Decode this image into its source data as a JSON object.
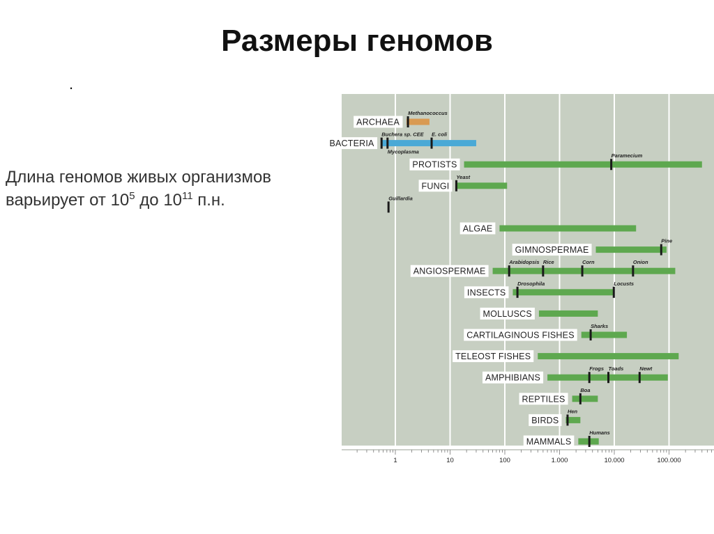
{
  "slide": {
    "title": "Размеры геномов",
    "bullet": ".",
    "desc_part1": "Длина геномов живых организмов варьирует от 10",
    "desc_sup1": "5",
    "desc_part2": " до 10",
    "desc_sup2": "11",
    "desc_part3": " п.н."
  },
  "chart_data": {
    "type": "bar",
    "orientation": "horizontal",
    "x_scale": "log",
    "xlim": [
      0.01,
      500000
    ],
    "tick_labels": [
      "1",
      "10",
      "100",
      "1.000",
      "10.000",
      "100.000"
    ],
    "tick_values": [
      1,
      10,
      100,
      1000,
      10000,
      100000
    ],
    "grid": true,
    "colors": {
      "archaea": "#d99a52",
      "bacteria": "#4aa9d6",
      "default": "#5ea84f",
      "background": "#c7cfc2",
      "marker": "#1a1a1a"
    },
    "rows": [
      {
        "label": "ARCHAEA",
        "range": [
          1.6,
          4.2
        ],
        "color": "archaea",
        "markers": [
          {
            "value": 1.7,
            "label": "Methanococcus",
            "pos": "above"
          }
        ]
      },
      {
        "label": "BACTERIA",
        "range": [
          0.55,
          30
        ],
        "color": "bacteria",
        "markers": [
          {
            "value": 0.56,
            "label": "Buchera sp. CEE",
            "pos": "above"
          },
          {
            "value": 4.6,
            "label": "E. coli",
            "pos": "above"
          },
          {
            "value": 0.72,
            "label": "Mycoplasma",
            "pos": "below"
          }
        ]
      },
      {
        "label": "PROTISTS",
        "range": [
          18,
          400000
        ],
        "color": "default",
        "markers": [
          {
            "value": 8800,
            "label": "Paramecium",
            "pos": "above"
          }
        ]
      },
      {
        "label": "FUNGI",
        "range": [
          13,
          110
        ],
        "color": "default",
        "markers": [
          {
            "value": 13,
            "label": "Yeast",
            "pos": "above"
          }
        ]
      },
      {
        "label": "",
        "range": null,
        "color": "default",
        "markers": [
          {
            "value": 0.75,
            "label": "Guillardia",
            "pos": "above"
          }
        ]
      },
      {
        "label": "ALGAE",
        "range": [
          80,
          25000
        ],
        "color": "default",
        "markers": []
      },
      {
        "label": "GIMNOSPERMAE",
        "range": [
          4600,
          90000
        ],
        "color": "default",
        "markers": [
          {
            "value": 72000,
            "label": "Pine",
            "pos": "above"
          }
        ]
      },
      {
        "label": "ANGIOSPERMAE",
        "range": [
          60,
          130000
        ],
        "color": "default",
        "markers": [
          {
            "value": 120,
            "label": "Arabidopsis",
            "pos": "above"
          },
          {
            "value": 500,
            "label": "Rice",
            "pos": "above"
          },
          {
            "value": 2600,
            "label": "Corn",
            "pos": "above"
          },
          {
            "value": 22000,
            "label": "Onion",
            "pos": "above"
          }
        ]
      },
      {
        "label": "INSECTS",
        "range": [
          140,
          10000
        ],
        "color": "default",
        "markers": [
          {
            "value": 170,
            "label": "Drosophila",
            "pos": "above"
          },
          {
            "value": 9800,
            "label": "Locusts",
            "pos": "above"
          }
        ]
      },
      {
        "label": "MOLLUSCS",
        "range": [
          420,
          5000
        ],
        "color": "default",
        "markers": []
      },
      {
        "label": "CARTILAGINOUS FISHES",
        "range": [
          2500,
          17000
        ],
        "color": "default",
        "markers": [
          {
            "value": 3700,
            "label": "Sharks",
            "pos": "above"
          }
        ]
      },
      {
        "label": "TELEOST FISHES",
        "range": [
          400,
          150000
        ],
        "color": "default",
        "markers": []
      },
      {
        "label": "AMPHIBIANS",
        "range": [
          600,
          95000
        ],
        "color": "default",
        "markers": [
          {
            "value": 3500,
            "label": "Frogs",
            "pos": "above"
          },
          {
            "value": 7800,
            "label": "Toads",
            "pos": "above"
          },
          {
            "value": 29000,
            "label": "Newt",
            "pos": "above"
          }
        ]
      },
      {
        "label": "REPTILES",
        "range": [
          1700,
          5000
        ],
        "color": "default",
        "markers": [
          {
            "value": 2400,
            "label": "Boa",
            "pos": "above"
          }
        ]
      },
      {
        "label": "BIRDS",
        "range": [
          1300,
          2400
        ],
        "color": "default",
        "markers": [
          {
            "value": 1400,
            "label": "Hen",
            "pos": "above"
          }
        ]
      },
      {
        "label": "MAMMALS",
        "range": [
          2200,
          5200
        ],
        "color": "default",
        "markers": [
          {
            "value": 3500,
            "label": "Humans",
            "pos": "above"
          }
        ]
      }
    ]
  }
}
